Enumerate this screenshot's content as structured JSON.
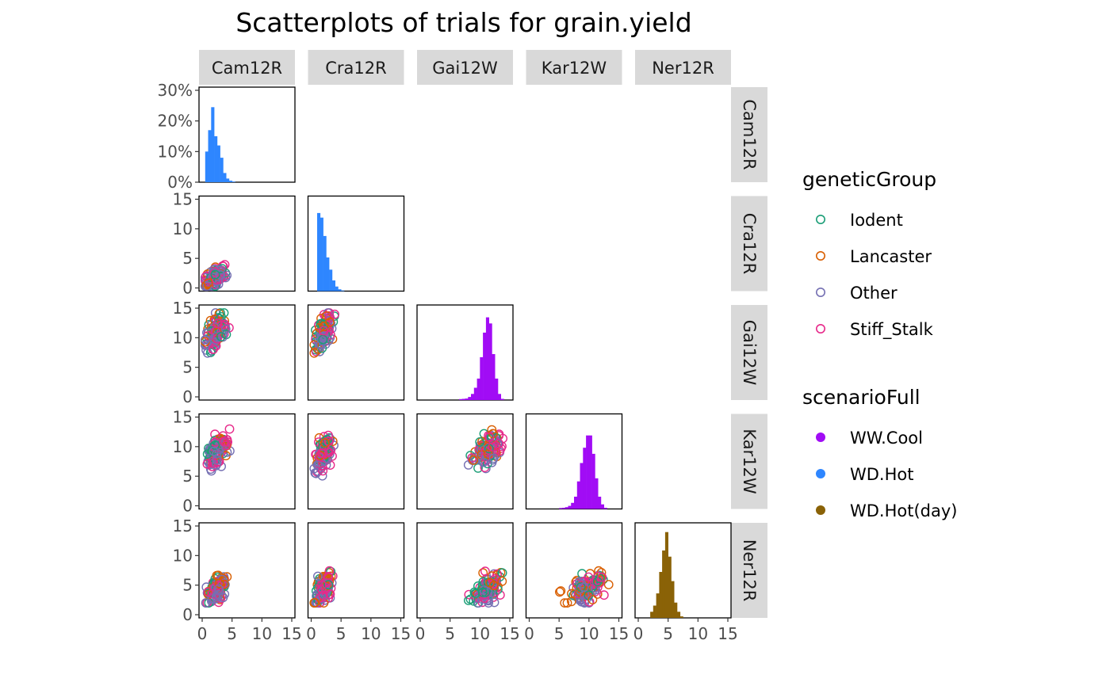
{
  "chart_data": {
    "type": "scatter",
    "title": "Scatterplots of trials for grain.yield",
    "trials": [
      "Cam12R",
      "Cra12R",
      "Gai12W",
      "Kar12W",
      "Ner12R"
    ],
    "axis_range": [
      0,
      15
    ],
    "tick_labels": [
      "0",
      "5",
      "10",
      "15"
    ],
    "hist_y_ticks": [
      "0%",
      "10%",
      "20%",
      "30%"
    ],
    "hist_y_range": [
      0,
      0.3
    ],
    "diagonal_histograms": [
      {
        "trial": "Cam12R",
        "scenario": "WD.Hot",
        "bin_width": 0.5,
        "bin_starts": [
          0.5,
          1,
          1.5,
          2,
          2.5,
          3,
          3.5,
          4,
          4.5,
          5
        ],
        "percent": [
          0.1,
          0.17,
          0.245,
          0.15,
          0.12,
          0.08,
          0.03,
          0.012,
          0.005,
          0.002
        ]
      },
      {
        "trial": "Cra12R",
        "scenario": "WD.Hot",
        "bin_width": 0.5,
        "bin_starts": [
          0.5,
          1,
          1.5,
          2,
          2.5,
          3,
          3.5,
          4,
          4.5,
          5
        ],
        "percent": [
          0.0,
          0.255,
          0.24,
          0.18,
          0.11,
          0.07,
          0.035,
          0.015,
          0.006,
          0.002
        ]
      },
      {
        "trial": "Gai12W",
        "scenario": "WW.Cool",
        "bin_width": 0.5,
        "bin_starts": [
          6.5,
          7,
          7.5,
          8,
          8.5,
          9,
          9.5,
          10,
          10.5,
          11,
          11.5,
          12,
          12.5,
          13,
          13.5
        ],
        "percent": [
          0.003,
          0.004,
          0.005,
          0.01,
          0.02,
          0.04,
          0.07,
          0.14,
          0.22,
          0.27,
          0.25,
          0.15,
          0.07,
          0.02,
          0.004
        ]
      },
      {
        "trial": "Kar12W",
        "scenario": "WW.Cool",
        "bin_width": 0.5,
        "bin_starts": [
          5,
          5.5,
          6,
          6.5,
          7,
          7.5,
          8,
          8.5,
          9,
          9.5,
          10,
          10.5,
          11,
          11.5,
          12,
          12.5
        ],
        "percent": [
          0.003,
          0.004,
          0.006,
          0.01,
          0.02,
          0.04,
          0.09,
          0.15,
          0.2,
          0.24,
          0.24,
          0.18,
          0.1,
          0.04,
          0.015,
          0.004
        ]
      },
      {
        "trial": "Ner12R",
        "scenario": "WD.Hot(day)",
        "bin_width": 0.5,
        "bin_starts": [
          2,
          2.5,
          3,
          3.5,
          4,
          4.5,
          5,
          5.5,
          6,
          6.5,
          7
        ],
        "percent": [
          0.02,
          0.04,
          0.08,
          0.15,
          0.22,
          0.28,
          0.2,
          0.12,
          0.05,
          0.02,
          0.005
        ]
      }
    ],
    "scatter_panels": [
      {
        "x": "Cam12R",
        "y": "Cra12R",
        "center": [
          2.0,
          2.0
        ],
        "spread": [
          0.9,
          0.9
        ],
        "cor": 0.5,
        "range_x": [
          0.5,
          4.6
        ],
        "range_y": [
          0.3,
          5.2
        ]
      },
      {
        "x": "Cam12R",
        "y": "Gai12W",
        "center": [
          2.4,
          11.3
        ],
        "spread": [
          0.8,
          1.4
        ],
        "cor": 0.5,
        "range_x": [
          0.5,
          4.8
        ],
        "range_y": [
          7.4,
          14.2
        ]
      },
      {
        "x": "Cra12R",
        "y": "Gai12W",
        "center": [
          2.0,
          11.3
        ],
        "spread": [
          0.7,
          1.4
        ],
        "cor": 0.5,
        "range_x": [
          0.5,
          5.0
        ],
        "range_y": [
          7.4,
          14.2
        ]
      },
      {
        "x": "Cam12R",
        "y": "Kar12W",
        "center": [
          2.4,
          9.5
        ],
        "spread": [
          0.8,
          1.4
        ],
        "cor": 0.5,
        "range_x": [
          0.5,
          4.8
        ],
        "range_y": [
          5.0,
          13.0
        ]
      },
      {
        "x": "Cra12R",
        "y": "Kar12W",
        "center": [
          2.0,
          9.5
        ],
        "spread": [
          0.7,
          1.4
        ],
        "cor": 0.5,
        "range_x": [
          0.5,
          5.2
        ],
        "range_y": [
          5.0,
          13.0
        ]
      },
      {
        "x": "Gai12W",
        "y": "Kar12W",
        "center": [
          11.0,
          9.5
        ],
        "spread": [
          1.2,
          1.4
        ],
        "cor": 0.5,
        "range_x": [
          7.5,
          14.0
        ],
        "range_y": [
          5.0,
          13.0
        ]
      },
      {
        "x": "Cam12R",
        "y": "Ner12R",
        "center": [
          2.4,
          4.5
        ],
        "spread": [
          0.8,
          1.2
        ],
        "cor": 0.5,
        "range_x": [
          0.5,
          4.8
        ],
        "range_y": [
          2.0,
          7.4
        ]
      },
      {
        "x": "Cra12R",
        "y": "Ner12R",
        "center": [
          2.0,
          4.5
        ],
        "spread": [
          0.7,
          1.2
        ],
        "cor": 0.5,
        "range_x": [
          0.5,
          5.2
        ],
        "range_y": [
          2.0,
          7.4
        ]
      },
      {
        "x": "Gai12W",
        "y": "Ner12R",
        "center": [
          11.0,
          4.5
        ],
        "spread": [
          1.2,
          1.2
        ],
        "cor": 0.5,
        "range_x": [
          7.5,
          14.0
        ],
        "range_y": [
          2.0,
          7.4
        ]
      },
      {
        "x": "Kar12W",
        "y": "Ner12R",
        "center": [
          9.5,
          4.5
        ],
        "spread": [
          1.4,
          1.2
        ],
        "cor": 0.5,
        "range_x": [
          5.0,
          13.5
        ],
        "range_y": [
          2.0,
          7.4
        ]
      }
    ],
    "points_per_panel": 120,
    "legend_placement": "right",
    "legends": [
      {
        "title": "geneticGroup",
        "shape": "open-circle",
        "entries": [
          {
            "label": "Iodent",
            "color": "#1b9e77"
          },
          {
            "label": "Lancaster",
            "color": "#d95f02"
          },
          {
            "label": "Other",
            "color": "#7570b3"
          },
          {
            "label": "Stiff_Stalk",
            "color": "#e7298a"
          }
        ]
      },
      {
        "title": "scenarioFull",
        "shape": "filled-circle",
        "entries": [
          {
            "label": "WW.Cool",
            "color": "#a10cf5"
          },
          {
            "label": "WD.Hot",
            "color": "#2e86ff"
          },
          {
            "label": "WD.Hot(day)",
            "color": "#8a6207"
          }
        ]
      }
    ],
    "group_shares": {
      "Iodent": 0.22,
      "Lancaster": 0.18,
      "Other": 0.35,
      "Stiff_Stalk": 0.25
    },
    "grid": false,
    "strip_fill": "#d9d9d9"
  }
}
